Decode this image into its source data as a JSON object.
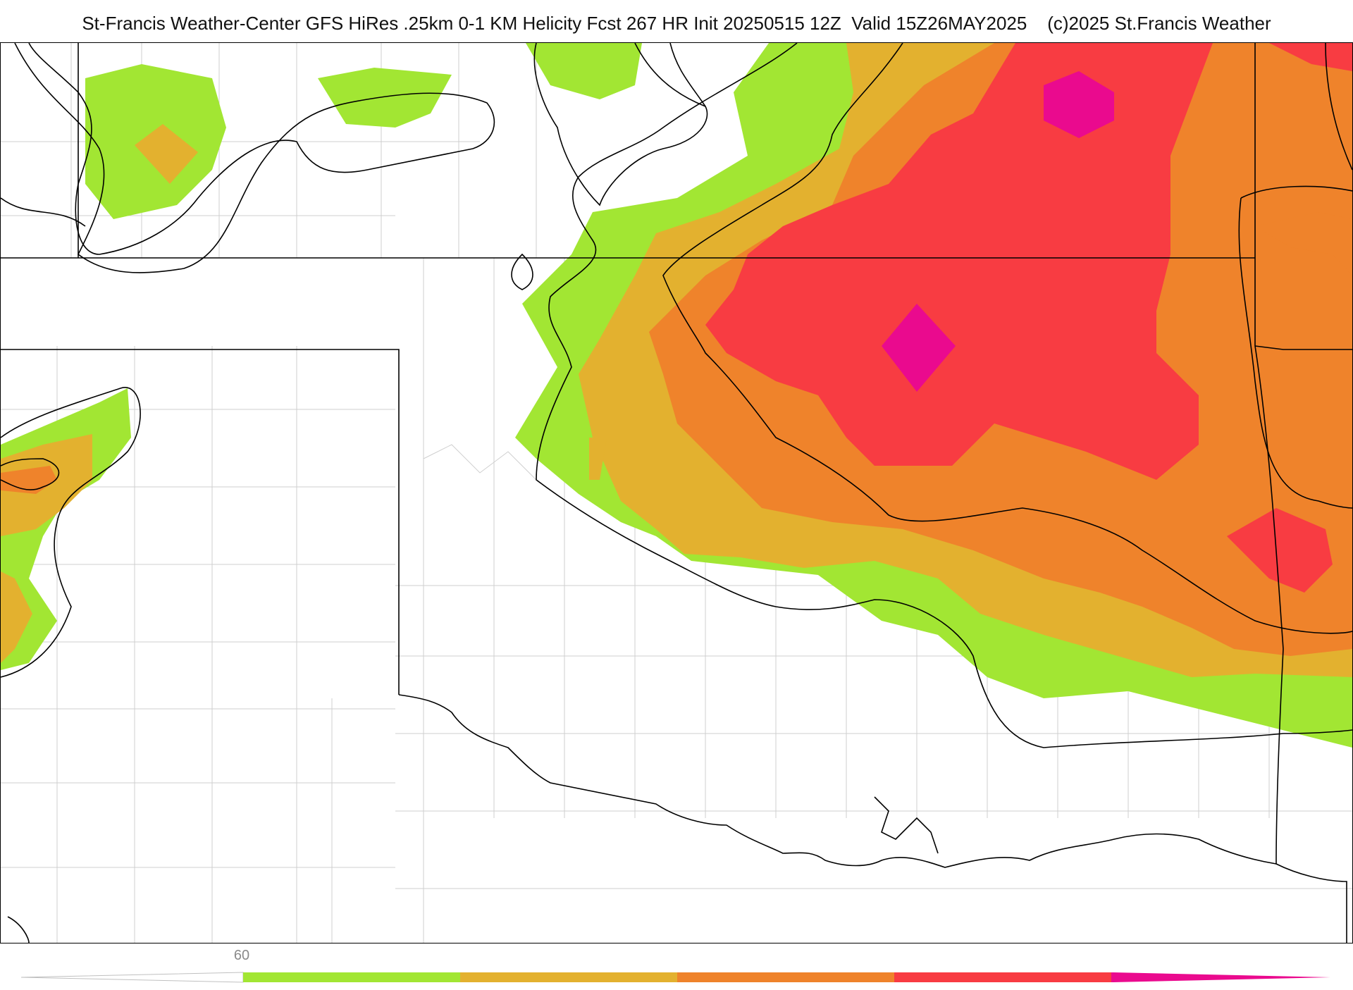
{
  "header": {
    "title": "St-Francis Weather-Center GFS HiRes .25km 0-1 KM Helicity Fcst 267 HR Init 20250515 12Z  Valid 15Z26MAY2025    (c)2025 St.Francis Weather"
  },
  "colors": {
    "background": "#ffffff",
    "green": "#a2e633",
    "gold": "#e3b12f",
    "orange": "#ef832b",
    "red": "#f83c42",
    "magenta": "#ea0a8e",
    "boundary": "#000000",
    "county": "#c8c8c8",
    "legend_label": "#8a8a8a"
  },
  "legend": {
    "label": "60",
    "bands": [
      {
        "name": "green",
        "color": "#a2e633"
      },
      {
        "name": "gold",
        "color": "#e3b12f"
      },
      {
        "name": "orange",
        "color": "#ef832b"
      },
      {
        "name": "red",
        "color": "#f83c42"
      },
      {
        "name": "magenta",
        "color": "#ea0a8e"
      }
    ]
  }
}
